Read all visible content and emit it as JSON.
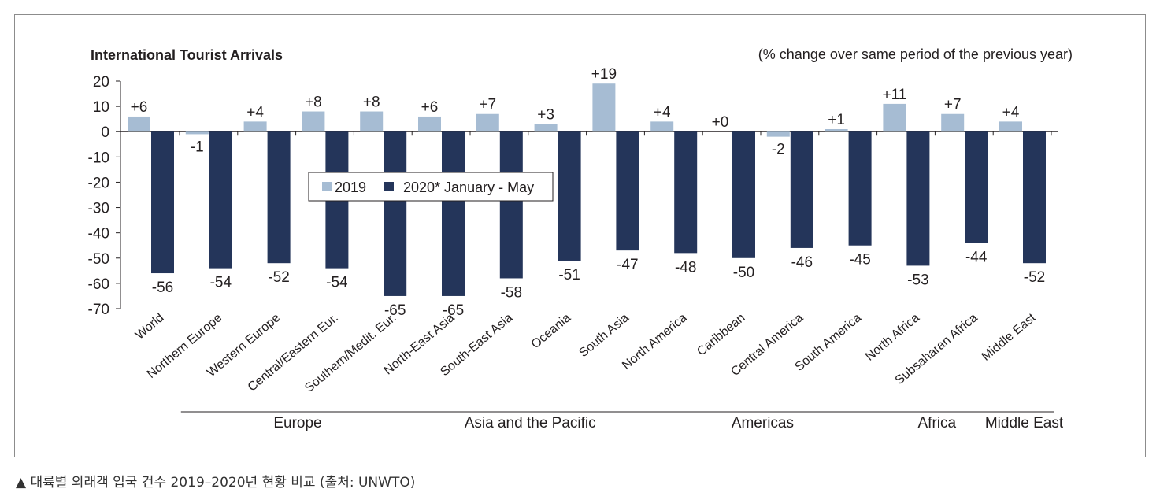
{
  "chart_data": {
    "type": "bar",
    "title": "International Tourist Arrivals",
    "subtitle": "(% change over same period of the previous year)",
    "categories": [
      "World",
      "Northern Europe",
      "Western Europe",
      "Central/Eastern Eur.",
      "Southern/Medit. Eur.",
      "North-East Asia",
      "South-East Asia",
      "Oceania",
      "South Asia",
      "North America",
      "Caribbean",
      "Central America",
      "South America",
      "North Africa",
      "Subsaharan Africa",
      "Middle East"
    ],
    "series": [
      {
        "name": "2019",
        "color": "#a6bcd3",
        "values": [
          6,
          -1,
          4,
          8,
          8,
          6,
          7,
          3,
          19,
          4,
          0,
          -2,
          1,
          11,
          7,
          4
        ],
        "labels": [
          "+6",
          "-1",
          "+4",
          "+8",
          "+8",
          "+6",
          "+7",
          "+3",
          "+19",
          "+4",
          "+0",
          "-2",
          "+1",
          "+11",
          "+7",
          "+4"
        ]
      },
      {
        "name": "2020* January - May",
        "color": "#24355a",
        "values": [
          -56,
          -54,
          -52,
          -54,
          -65,
          -65,
          -58,
          -51,
          -47,
          -48,
          -50,
          -46,
          -45,
          -53,
          -44,
          -52
        ],
        "labels": [
          "-56",
          "-54",
          "-52",
          "-54",
          "-65",
          "-65",
          "-58",
          "-51",
          "-47",
          "-48",
          "-50",
          "-46",
          "-45",
          "-53",
          "-44",
          "-52"
        ]
      }
    ],
    "ylim": [
      -70,
      20
    ],
    "yticks": [
      20,
      10,
      0,
      -10,
      -20,
      -30,
      -40,
      -50,
      -60,
      -70
    ],
    "groups": [
      {
        "label": "Europe",
        "from": 1,
        "to": 4
      },
      {
        "label": "Asia and the Pacific",
        "from": 5,
        "to": 8
      },
      {
        "label": "Americas",
        "from": 9,
        "to": 12
      },
      {
        "label": "Africa",
        "from": 13,
        "to": 14
      },
      {
        "label": "Middle East",
        "from": 15,
        "to": 15
      }
    ],
    "legend_position": "center-left"
  },
  "caption": "▲ 대륙별 외래객 입국 건수 2019–2020년 현황 비교 (출처: UNWTO)"
}
